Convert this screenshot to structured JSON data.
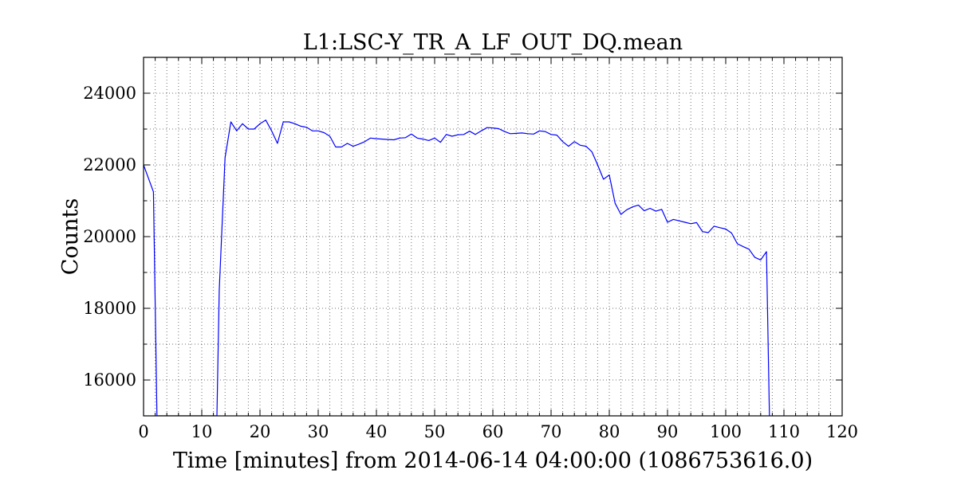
{
  "chart_data": {
    "type": "line",
    "title": "L1:LSC-Y_TR_A_LF_OUT_DQ.mean",
    "xlabel": "Time [minutes] from 2014-06-14 04:00:00 (1086753616.0)",
    "ylabel": "Counts",
    "xlim": [
      0,
      120
    ],
    "ylim": [
      15000,
      25000
    ],
    "xticks": [
      0,
      10,
      20,
      30,
      40,
      50,
      60,
      70,
      80,
      90,
      100,
      110,
      120
    ],
    "xtick_labels": [
      "0",
      "10",
      "20",
      "30",
      "40",
      "50",
      "60",
      "70",
      "80",
      "90",
      "100",
      "110",
      "120"
    ],
    "yticks": [
      16000,
      18000,
      20000,
      22000,
      24000
    ],
    "ytick_labels": [
      "16000",
      "18000",
      "20000",
      "22000",
      "24000"
    ],
    "grid": true,
    "series": [
      {
        "color": "#0000ff",
        "x": [
          0,
          1.7,
          2.3,
          12.6,
          13.0,
          14.0,
          15.0,
          16.0,
          17.0,
          18.0,
          19.0,
          20.0,
          21.0,
          22.0,
          23.0,
          24.0,
          25.0,
          26.0,
          27.0,
          28.0,
          29.0,
          30.0,
          31.0,
          32.0,
          33.0,
          34.0,
          35.0,
          36.0,
          37.0,
          38.0,
          39.0,
          40.0,
          41.0,
          42.0,
          43.0,
          44.0,
          45.0,
          46.0,
          47.0,
          48.0,
          49.0,
          50.0,
          51.0,
          52.0,
          53.0,
          54.0,
          55.0,
          56.0,
          57.0,
          58.0,
          59.0,
          60.0,
          61.0,
          62.0,
          63.0,
          64.0,
          65.0,
          66.0,
          67.0,
          68.0,
          69.0,
          70.0,
          71.0,
          72.0,
          73.0,
          74.0,
          75.0,
          76.0,
          77.0,
          78.0,
          79.0,
          80.0,
          81.0,
          82.0,
          83.0,
          84.0,
          85.0,
          86.0,
          87.0,
          88.0,
          89.0,
          90.0,
          91.0,
          92.0,
          93.0,
          94.0,
          95.0,
          96.0,
          97.0,
          98.0,
          99.0,
          100.0,
          101.0,
          102.0,
          103.0,
          104.0,
          105.0,
          106.0,
          107.0,
          107.5
        ],
        "y": [
          22000,
          21250,
          15000,
          15000,
          18500,
          22200,
          23200,
          22950,
          23150,
          23000,
          23000,
          23150,
          23250,
          22950,
          22600,
          23200,
          23200,
          23150,
          23080,
          23050,
          22950,
          22950,
          22900,
          22800,
          22500,
          22500,
          22600,
          22520,
          22580,
          22650,
          22750,
          22730,
          22720,
          22710,
          22700,
          22750,
          22760,
          22860,
          22750,
          22720,
          22680,
          22750,
          22630,
          22850,
          22800,
          22840,
          22850,
          22940,
          22850,
          22950,
          23040,
          23030,
          23010,
          22930,
          22870,
          22880,
          22890,
          22870,
          22860,
          22950,
          22930,
          22850,
          22830,
          22650,
          22520,
          22650,
          22550,
          22520,
          22370,
          22000,
          21600,
          21720,
          20930,
          20620,
          20750,
          20830,
          20880,
          20720,
          20790,
          20710,
          20760,
          20400,
          20480,
          20440,
          20400,
          20360,
          20390,
          20140,
          20110,
          20290,
          20250,
          20210,
          20100,
          19800,
          19720,
          19650,
          19420,
          19350,
          19580,
          15000
        ]
      }
    ]
  }
}
